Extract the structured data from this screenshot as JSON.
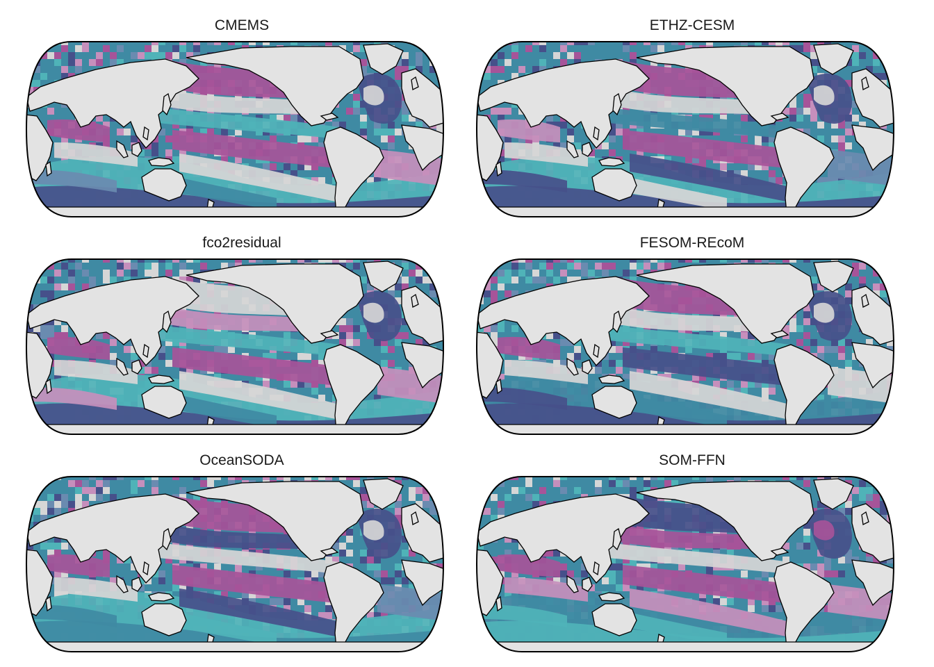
{
  "colors": {
    "land": "#e3e3e3",
    "outline": "#000000",
    "background": "#ffffff",
    "clusters": [
      "#c68fbc",
      "#a65499",
      "#4fb3b8",
      "#3f8aa3",
      "#46508a",
      "#d6d6d6",
      "#6a8bb0"
    ]
  },
  "panels": [
    {
      "id": "cmems",
      "title": "CMEMS",
      "variant": 0
    },
    {
      "id": "ethz-cesm",
      "title": "ETHZ-CESM",
      "variant": 1
    },
    {
      "id": "fco2residual",
      "title": "fco2residual",
      "variant": 2
    },
    {
      "id": "fesom-recom",
      "title": "FESOM-REcoM",
      "variant": 3
    },
    {
      "id": "oceansoda",
      "title": "OceanSODA",
      "variant": 4
    },
    {
      "id": "som-ffn",
      "title": "SOM-FFN",
      "variant": 5
    }
  ]
}
